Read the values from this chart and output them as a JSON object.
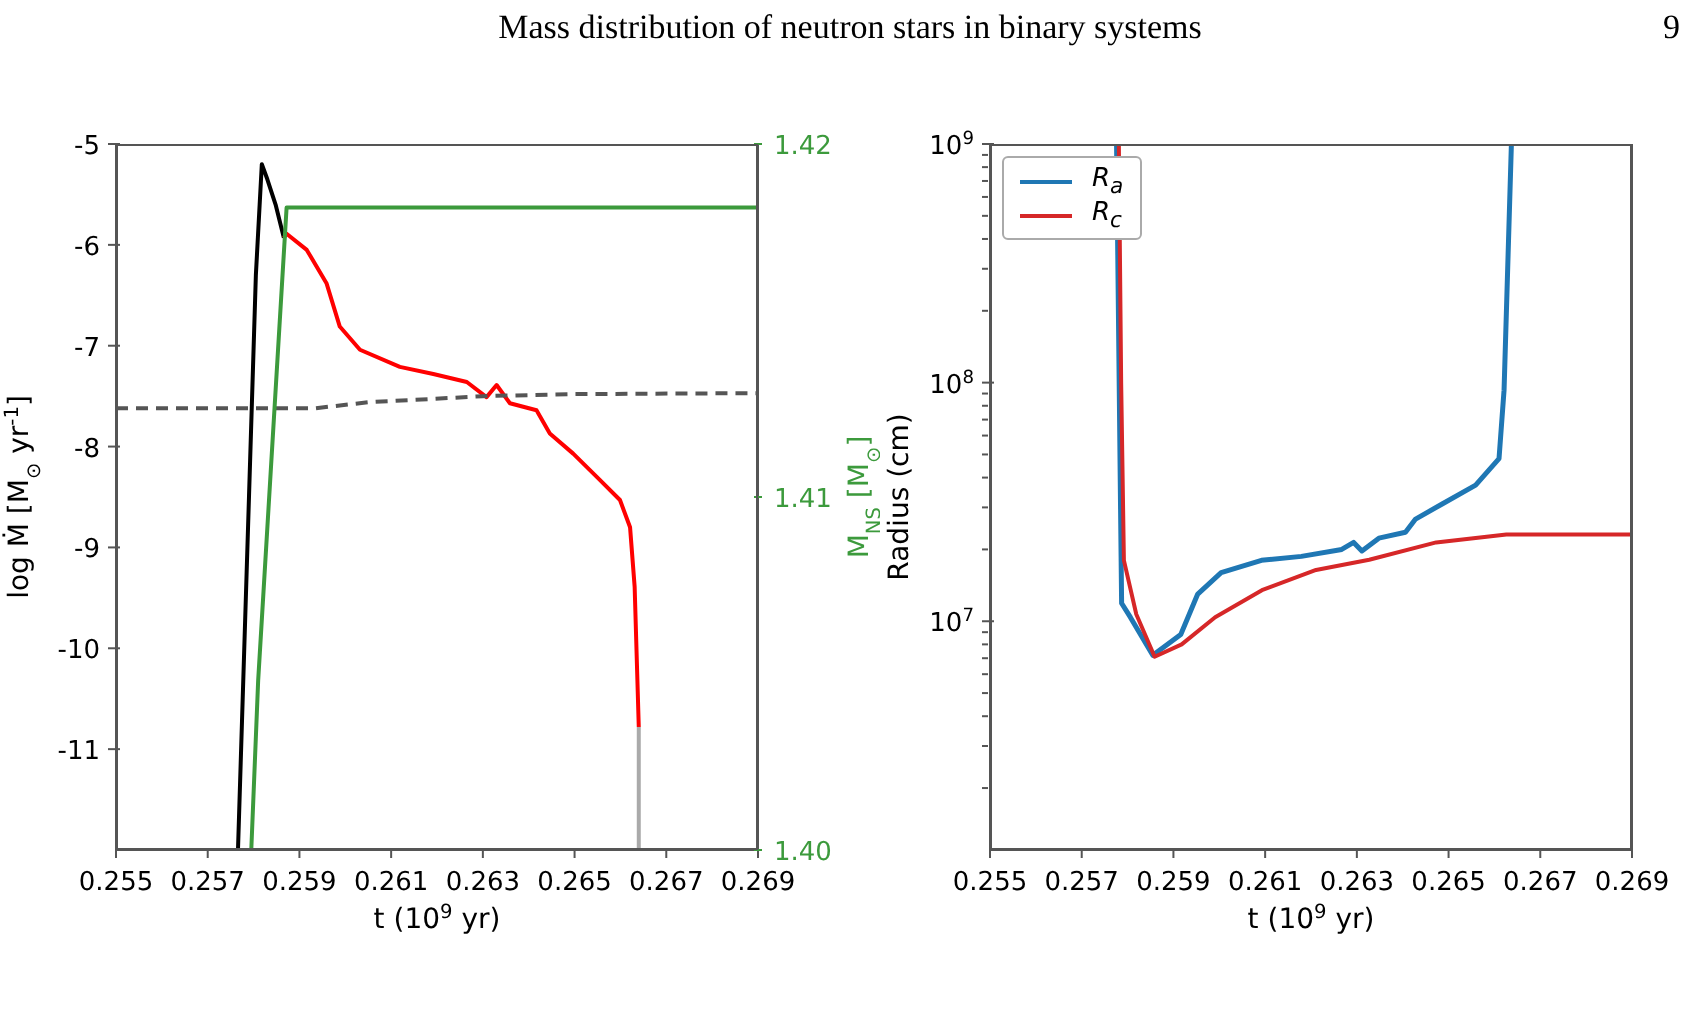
{
  "chart_data": [
    {
      "type": "line",
      "title": "Mass distribution of neutron stars in binary systems",
      "annotations": [
        "9"
      ],
      "xlabel": "t (10$^{9}$ yr)",
      "ylabel": "log Ṁ [M$_{⊙}$ yr$^{-1}$]",
      "y2label": "M$_{NS}$ [M$_{⊙}$]",
      "xlim": [
        0.255,
        0.269
      ],
      "xticks": [
        0.255,
        0.257,
        0.259,
        0.261,
        0.263,
        0.265,
        0.267,
        0.269
      ],
      "ylim": [
        -12,
        -5
      ],
      "yticks": [
        -5,
        -6,
        -7,
        -8,
        -9,
        -10,
        -11
      ],
      "y2lim": [
        1.4,
        1.42
      ],
      "y2ticks": [
        {
          "value": 1.4,
          "label": "1.40"
        },
        1.41,
        1.42
      ],
      "series": [
        {
          "color": "#000000",
          "x": [
            0.25766,
            0.2579,
            0.25805,
            0.25818,
            0.2583,
            0.25848,
            0.25866
          ],
          "values": [
            -12,
            -8.5,
            -6.3,
            -5.2,
            -5.35,
            -5.6,
            -5.93
          ]
        },
        {
          "color": "#ff0000",
          "x": [
            0.25866,
            0.25872,
            0.25916,
            0.25959,
            0.25988,
            0.26032,
            0.26119,
            0.26192,
            0.26265,
            0.26308,
            0.2633,
            0.26359,
            0.26417,
            0.26446,
            0.26497,
            0.26555,
            0.26599,
            0.26621,
            0.26631,
            0.2664
          ],
          "values": [
            -5.93,
            -5.89,
            -6.05,
            -6.38,
            -6.81,
            -7.04,
            -7.21,
            -7.28,
            -7.36,
            -7.51,
            -7.39,
            -7.57,
            -7.64,
            -7.87,
            -8.07,
            -8.33,
            -8.53,
            -8.8,
            -9.39,
            -10.78
          ]
        },
        {
          "color": "#aaaaaa",
          "x": [
            0.2664,
            0.2664
          ],
          "values": [
            -10.78,
            -12
          ]
        },
        {
          "color": "#555555",
          "line_style": "dashed",
          "x": [
            0.255,
            0.25936,
            0.2605,
            0.2618,
            0.263,
            0.265,
            0.269
          ],
          "values": [
            -7.62,
            -7.62,
            -7.56,
            -7.53,
            -7.5,
            -7.48,
            -7.47
          ]
        },
        {
          "color": "#3c9a3c",
          "axis": "y2",
          "x": [
            0.255,
            0.25795,
            0.2581,
            0.25872,
            0.269
          ],
          "values": [
            1.4,
            1.4,
            1.4048,
            1.4182,
            1.4182
          ]
        }
      ]
    },
    {
      "type": "line",
      "xlabel": "t (10$^{9}$ yr)",
      "ylabel": "Radius (cm)",
      "log": true,
      "legend": "top left",
      "xlim": [
        0.255,
        0.269
      ],
      "xticks": [
        0.255,
        0.257,
        0.259,
        0.261,
        0.263,
        0.265,
        0.267,
        0.269
      ],
      "ylim": [
        1100000,
        1000000000
      ],
      "yticks": [
        {
          "value": 2000000,
          "label": null
        },
        {
          "value": 3000000,
          "label": null
        },
        {
          "value": 4000000,
          "label": null
        },
        {
          "value": 5000000,
          "label": null
        },
        {
          "value": 6000000,
          "label": null
        },
        {
          "value": 7000000,
          "label": null
        },
        {
          "value": 8000000,
          "label": null
        },
        {
          "value": 9000000,
          "label": null
        },
        {
          "value": 10000000,
          "label": "10$^{7}$"
        },
        {
          "value": 20000000,
          "label": null
        },
        {
          "value": 30000000,
          "label": null
        },
        {
          "value": 40000000,
          "label": null
        },
        {
          "value": 50000000,
          "label": null
        },
        {
          "value": 60000000,
          "label": null
        },
        {
          "value": 70000000,
          "label": null
        },
        {
          "value": 80000000,
          "label": null
        },
        {
          "value": 90000000,
          "label": null
        },
        {
          "value": 100000000,
          "label": "10$^{8}$"
        },
        {
          "value": 200000000,
          "label": null
        },
        {
          "value": 300000000,
          "label": null
        },
        {
          "value": 400000000,
          "label": null
        },
        {
          "value": 500000000,
          "label": null
        },
        {
          "value": 600000000,
          "label": null
        },
        {
          "value": 700000000,
          "label": null
        },
        {
          "value": 800000000,
          "label": null
        },
        {
          "value": 900000000,
          "label": null
        },
        {
          "value": 1000000000,
          "label": "10$^{9}$"
        }
      ],
      "series": [
        {
          "name": "R$_{a}$",
          "color": "#1f77b4",
          "x": [
            0.25776,
            0.25787,
            0.25806,
            0.25855,
            0.25916,
            0.25953,
            0.26004,
            0.26092,
            0.26179,
            0.26267,
            0.26293,
            0.26311,
            0.26348,
            0.26406,
            0.26428,
            0.26486,
            0.26559,
            0.2661,
            0.26621,
            0.26637
          ],
          "values": [
            1000000000,
            11900000,
            10400000,
            7200000,
            8800000,
            13000000,
            16000000,
            18000000,
            18700000,
            20000000,
            21400000,
            19700000,
            22300000,
            23600000,
            26800000,
            31000000,
            37200000,
            48000000,
            93000000,
            1000000000
          ]
        },
        {
          "name": "R$_{c}$",
          "color": "#d62728",
          "x": [
            0.25781,
            0.25786,
            0.25792,
            0.25819,
            0.25859,
            0.25918,
            0.25991,
            0.26093,
            0.26211,
            0.26327,
            0.26473,
            0.26626,
            0.269
          ],
          "values": [
            1000000000,
            100000000,
            18000000,
            10700000,
            7100000,
            8000000,
            10400000,
            13500000,
            16400000,
            18100000,
            21400000,
            23100000,
            23100000
          ]
        }
      ]
    }
  ]
}
